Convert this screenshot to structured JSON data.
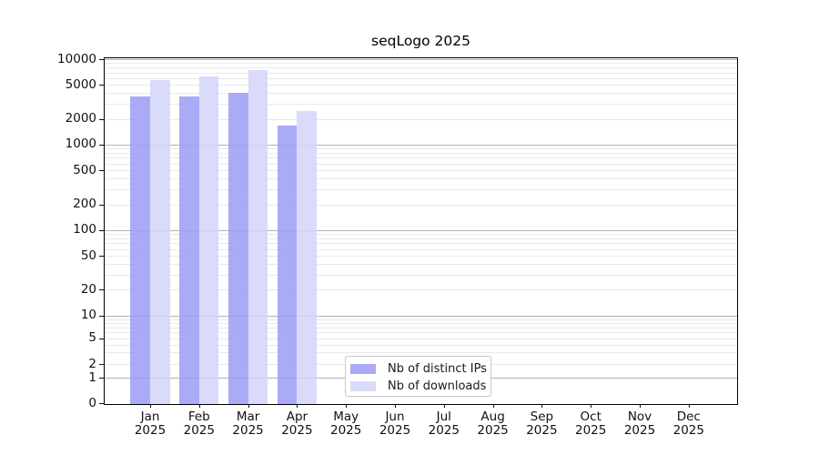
{
  "chart_data": {
    "type": "bar",
    "title": "seqLogo 2025",
    "categories": [
      "Jan 2025",
      "Feb 2025",
      "Mar 2025",
      "Apr 2025",
      "May 2025",
      "Jun 2025",
      "Jul 2025",
      "Aug 2025",
      "Sep 2025",
      "Oct 2025",
      "Nov 2025",
      "Dec 2025"
    ],
    "x_tick_months": [
      "Jan",
      "Feb",
      "Mar",
      "Apr",
      "May",
      "Jun",
      "Jul",
      "Aug",
      "Sep",
      "Oct",
      "Nov",
      "Dec"
    ],
    "x_tick_year": "2025",
    "series": [
      {
        "name": "Nb of distinct IPs",
        "color": "#9b9bf6",
        "opacity": 0.85,
        "values": [
          3700,
          3650,
          4000,
          1650,
          null,
          null,
          null,
          null,
          null,
          null,
          null,
          null
        ]
      },
      {
        "name": "Nb of downloads",
        "color": "#d3d3f9",
        "opacity": 0.85,
        "values": [
          5750,
          6200,
          7450,
          2500,
          null,
          null,
          null,
          null,
          null,
          null,
          null,
          null
        ]
      }
    ],
    "xlabel": "",
    "ylabel": "",
    "yscale": "log (symlog, 0 at baseline)",
    "yticks": [
      10000,
      5000,
      2000,
      1000,
      500,
      200,
      100,
      50,
      20,
      10,
      5,
      2,
      1,
      0
    ],
    "ylim": [
      0,
      10500
    ],
    "grid": {
      "major": "powers of 10",
      "minor": "2-9 per decade",
      "major_color": "#b3b3b3",
      "minor_color": "#e9e9e9"
    },
    "legend_position": "lower center inside plot"
  },
  "legend": {
    "items": [
      {
        "label": "Nb of distinct IPs",
        "color": "#9b9bf6",
        "opacity": 0.85
      },
      {
        "label": "Nb of downloads",
        "color": "#d3d3f9",
        "opacity": 0.85
      }
    ]
  }
}
